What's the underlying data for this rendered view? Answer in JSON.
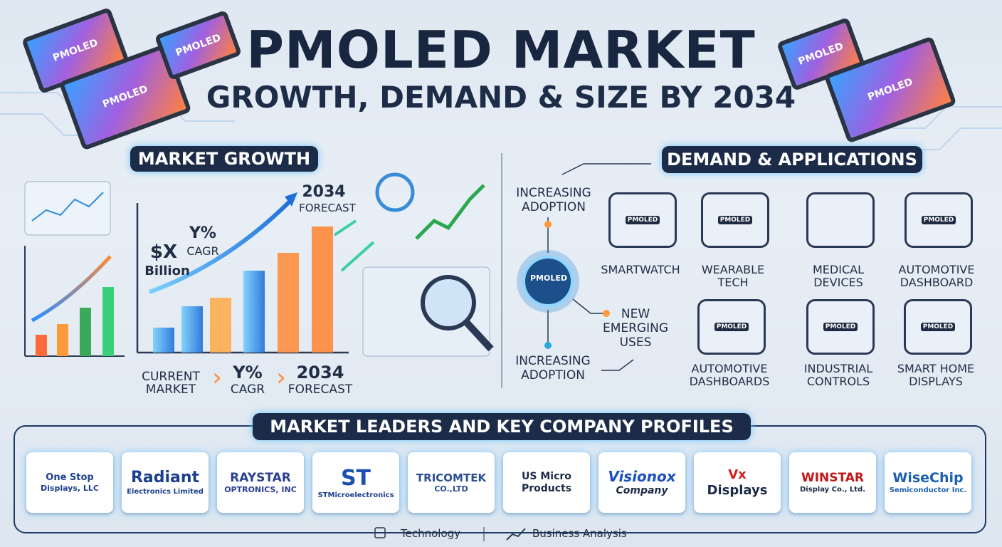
{
  "header": {
    "title": "PMOLED MARKET",
    "subtitle": "GROWTH, DEMAND & SIZE BY 2034"
  },
  "chips": [
    "PMOLED",
    "PMOLED",
    "PMOLED",
    "PMOLED",
    "PMOLED"
  ],
  "market_growth": {
    "heading": "MARKET GROWTH",
    "size_label": [
      "$X",
      "Billion"
    ],
    "cagr_label": [
      "Y%",
      "CAGR"
    ],
    "forecast_label": [
      "2034",
      "FORECAST"
    ],
    "steps": [
      [
        "CURRENT",
        "MARKET"
      ],
      [
        "Y%",
        "CAGR"
      ],
      [
        "2034",
        "FORECAST"
      ]
    ]
  },
  "demand": {
    "heading": "DEMAND & APPLICATIONS",
    "hub": "PMOLED",
    "drivers": [
      [
        "INCREASING",
        "ADOPTION"
      ],
      [
        "NEW",
        "EMERGING",
        "USES"
      ],
      [
        "INCREASING",
        "ADOPTION"
      ]
    ],
    "applications": [
      {
        "icon_label": "PMOLED",
        "lines": [
          "SMARTWATCH"
        ]
      },
      {
        "icon_label": "PMOLED",
        "lines": [
          "WEARABLE",
          "TECH"
        ]
      },
      {
        "lines": [
          "MEDICAL",
          "DEVICES"
        ]
      },
      {
        "icon_label": "PMOLED",
        "lines": [
          "AUTOMOTIVE",
          "DASHBOARD"
        ]
      },
      {
        "icon_label": "PMOLED",
        "lines": [
          "AUTOMOTIVE",
          "DASHBOARDS"
        ]
      },
      {
        "icon_label": "PMOLED",
        "lines": [
          "INDUSTRIAL",
          "CONTROLS"
        ]
      },
      {
        "icon_label": "PMOLED",
        "lines": [
          "SMART HOME",
          "DISPLAYS"
        ]
      }
    ]
  },
  "leaders": {
    "heading": "MARKET LEADERS AND KEY COMPANY PROFILES",
    "companies": [
      {
        "lines": [
          "One Stop",
          "Displays, LLC"
        ]
      },
      {
        "lines": [
          "Radiant",
          "Electronics Limited"
        ]
      },
      {
        "lines": [
          "RAYSTAR",
          "OPTRONICS, INC"
        ]
      },
      {
        "lines": [
          "ST",
          "STMicroelectronics"
        ]
      },
      {
        "lines": [
          "TRICOMTEK",
          "CO.,LTD"
        ]
      },
      {
        "lines": [
          "US Micro",
          "Products"
        ]
      },
      {
        "lines": [
          "Visionox",
          "Company"
        ]
      },
      {
        "lines": [
          "Vx",
          "Displays"
        ]
      },
      {
        "lines": [
          "WINSTAR",
          "Display Co., Ltd."
        ]
      },
      {
        "lines": [
          "WiseChip",
          "Semiconductor Inc."
        ]
      }
    ]
  },
  "footer": {
    "items": [
      "Technology",
      "Business Analysis"
    ]
  }
}
